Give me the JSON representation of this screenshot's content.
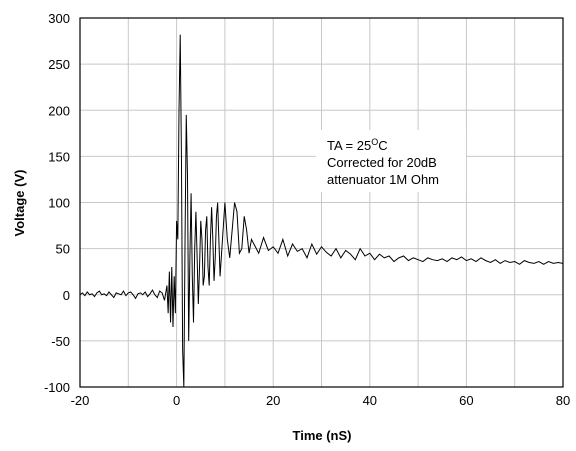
{
  "chart_data": {
    "type": "line",
    "x_label": "Time (nS)",
    "y_label": "Voltage (V)",
    "annotation": {
      "line1_prefix": "TA = 25",
      "line1_sup": "O",
      "line1_suffix": "C",
      "line2": "Corrected for 20dB",
      "line3": "attenuator 1M Ohm"
    },
    "xlim": [
      -20,
      80
    ],
    "xticks": [
      -20,
      0,
      20,
      40,
      60,
      80
    ],
    "x_grid": [
      -10,
      10,
      30,
      50,
      70
    ],
    "ylim": [
      -100,
      300
    ],
    "yticks": [
      -100,
      -50,
      0,
      50,
      100,
      150,
      200,
      250,
      300
    ],
    "grid": true,
    "series": [
      {
        "color": "#000000",
        "x": [
          -20,
          -19.5,
          -19,
          -18.5,
          -18,
          -17.5,
          -17,
          -16.5,
          -16,
          -15.5,
          -15,
          -14.5,
          -14,
          -13.5,
          -13,
          -12.5,
          -12,
          -11.5,
          -11,
          -10.5,
          -10,
          -9.5,
          -9,
          -8.5,
          -8,
          -7.5,
          -7,
          -6.5,
          -6,
          -5.5,
          -5,
          -4.5,
          -4,
          -3.5,
          -3,
          -2.5,
          -2,
          -1.75,
          -1.5,
          -1.25,
          -1,
          -0.75,
          -0.5,
          -0.25,
          0,
          0.25,
          0.5,
          0.75,
          1,
          1.25,
          1.5,
          1.75,
          2,
          2.25,
          2.5,
          2.75,
          3,
          3.25,
          3.5,
          3.75,
          4,
          4.25,
          4.5,
          4.75,
          5,
          5.25,
          5.5,
          5.75,
          6,
          6.25,
          6.5,
          6.75,
          7,
          7.25,
          7.5,
          7.75,
          8,
          8.25,
          8.5,
          8.75,
          9,
          9.5,
          10,
          10.5,
          11,
          11.5,
          12,
          12.5,
          13,
          13.5,
          14,
          14.5,
          15,
          15.5,
          16,
          17,
          18,
          19,
          20,
          21,
          22,
          23,
          24,
          25,
          26,
          27,
          28,
          29,
          30,
          31,
          32,
          33,
          34,
          35,
          36,
          37,
          38,
          39,
          40,
          41,
          42,
          43,
          44,
          45,
          46,
          47,
          48,
          49,
          50,
          51,
          52,
          53,
          54,
          55,
          56,
          57,
          58,
          59,
          60,
          61,
          62,
          63,
          64,
          65,
          66,
          67,
          68,
          69,
          70,
          71,
          72,
          73,
          74,
          75,
          76,
          77,
          78,
          79,
          80
        ],
        "values": [
          0,
          2,
          -1,
          3,
          0,
          1,
          -2,
          2,
          4,
          0,
          1,
          -1,
          3,
          0,
          -3,
          2,
          1,
          0,
          4,
          -1,
          2,
          3,
          0,
          -4,
          1,
          2,
          0,
          3,
          -2,
          1,
          5,
          0,
          -3,
          4,
          2,
          -6,
          10,
          -20,
          25,
          -30,
          30,
          -35,
          20,
          -20,
          80,
          60,
          200,
          282,
          150,
          -60,
          -100,
          60,
          195,
          130,
          -50,
          40,
          110,
          20,
          -30,
          50,
          90,
          40,
          -10,
          30,
          80,
          60,
          10,
          20,
          70,
          85,
          30,
          10,
          60,
          95,
          60,
          15,
          40,
          85,
          100,
          60,
          20,
          60,
          100,
          60,
          40,
          70,
          100,
          90,
          45,
          50,
          85,
          70,
          45,
          60,
          55,
          45,
          62,
          48,
          52,
          45,
          60,
          42,
          55,
          47,
          50,
          40,
          55,
          44,
          52,
          46,
          42,
          50,
          40,
          48,
          44,
          38,
          50,
          42,
          45,
          38,
          44,
          40,
          42,
          36,
          40,
          42,
          37,
          40,
          38,
          36,
          40,
          38,
          37,
          39,
          36,
          40,
          38,
          41,
          37,
          39,
          36,
          40,
          37,
          35,
          38,
          34,
          37,
          35,
          36,
          33,
          37,
          35,
          34,
          36,
          33,
          36,
          34,
          35,
          34
        ]
      }
    ]
  }
}
